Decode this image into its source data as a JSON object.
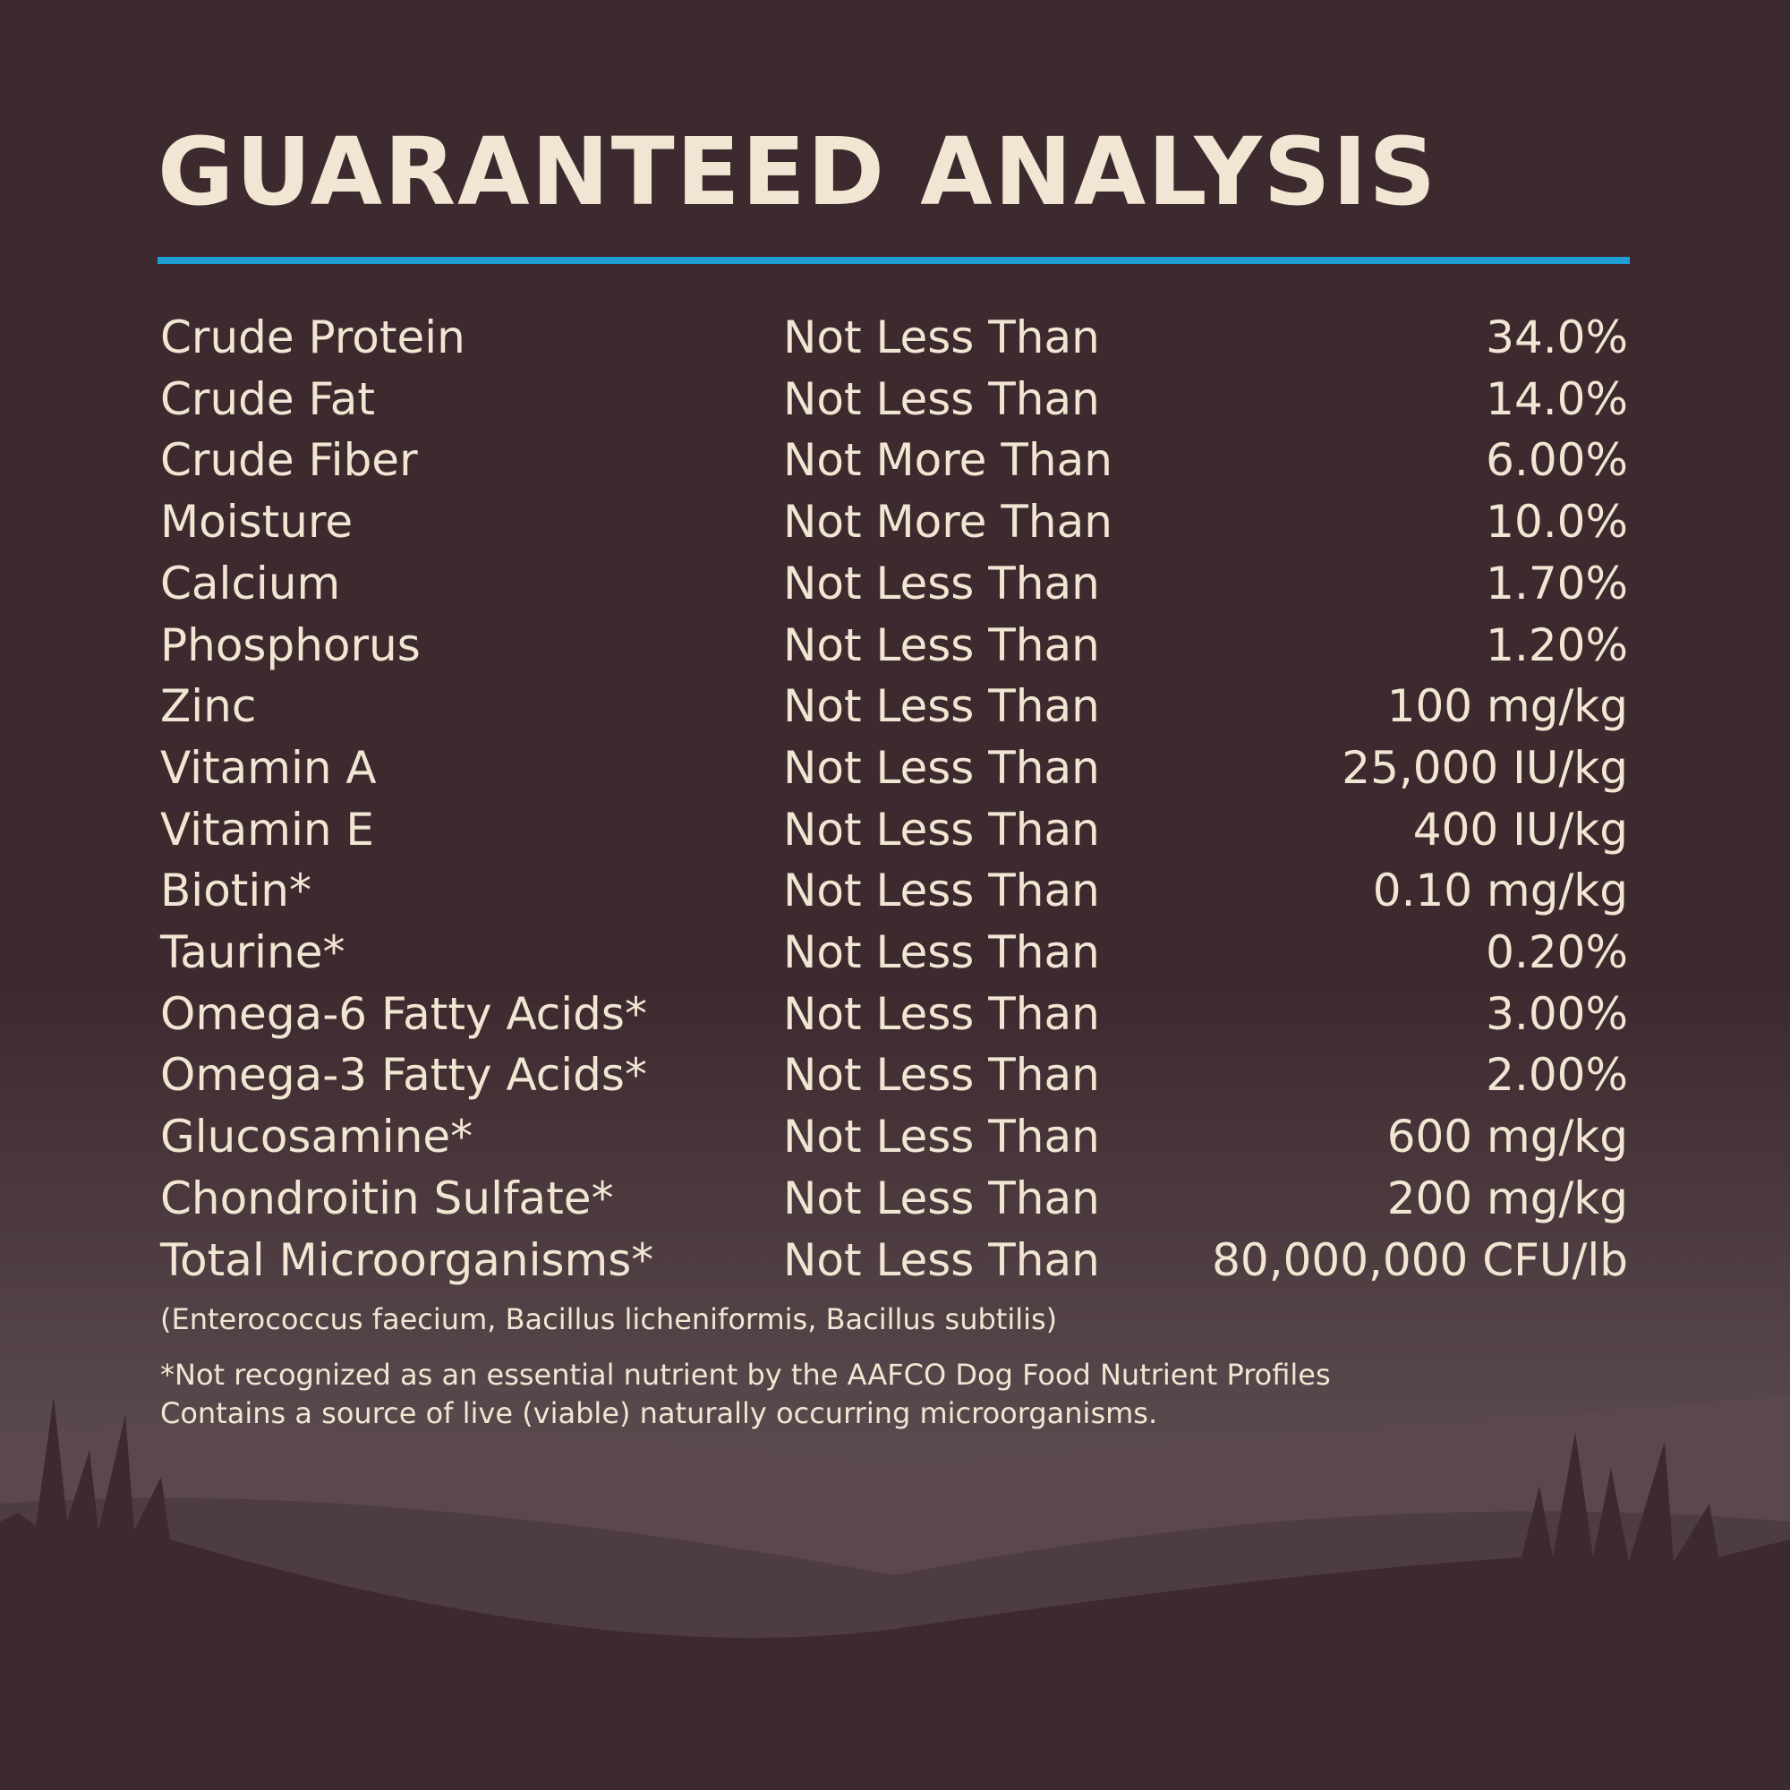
{
  "header": {
    "title": "GUARANTEED ANALYSIS"
  },
  "table": {
    "rows": [
      [
        "Crude Protein",
        "Not Less Than",
        "34.0%"
      ],
      [
        "Crude Fat",
        "Not Less Than",
        "14.0%"
      ],
      [
        "Crude Fiber",
        "Not More Than",
        "6.00%"
      ],
      [
        "Moisture",
        "Not More Than",
        "10.0%"
      ],
      [
        "Calcium",
        "Not Less Than",
        "1.70%"
      ],
      [
        "Phosphorus",
        "Not Less Than",
        "1.20%"
      ],
      [
        "Zinc",
        "Not Less Than",
        "100 mg/kg"
      ],
      [
        "Vitamin A",
        "Not Less Than",
        "25,000 IU/kg"
      ],
      [
        "Vitamin E",
        "Not Less Than",
        "400 IU/kg"
      ],
      [
        "Biotin*",
        "Not Less Than",
        "0.10 mg/kg"
      ],
      [
        "Taurine*",
        "Not Less Than",
        "0.20%"
      ],
      [
        "Omega-6 Fatty Acids*",
        "Not Less Than",
        "3.00%"
      ],
      [
        "Omega-3 Fatty Acids*",
        "Not Less Than",
        "2.00%"
      ],
      [
        "Glucosamine*",
        "Not Less Than",
        "600 mg/kg"
      ],
      [
        "Chondroitin Sulfate*",
        "Not Less Than",
        "200 mg/kg"
      ],
      [
        "Total Microorganisms*",
        "Not Less Than",
        "80,000,000 CFU/lb"
      ]
    ]
  },
  "notes": {
    "species": "(Enterococcus faecium, Bacillus licheniformis, Bacillus subtilis)",
    "footnote": "*Not recognized as an essential nutrient by the AAFCO Dog Food Nutrient Profiles",
    "statement": "Contains a source of live (viable) naturally occurring microorganisms."
  }
}
